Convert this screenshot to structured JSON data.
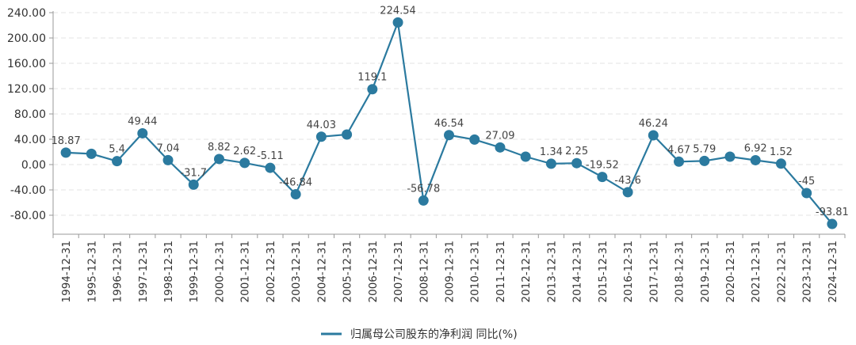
{
  "chart_data": {
    "type": "line",
    "title": "",
    "xlabel": "",
    "ylabel": "",
    "ylim": [
      -100,
      240
    ],
    "yticks": [
      -80,
      -40,
      0,
      40,
      80,
      120,
      160,
      200,
      240
    ],
    "ytick_labels": [
      "-80.00",
      "-40.00",
      "0.00",
      "40.00",
      "80.00",
      "120.00",
      "160.00",
      "200.00",
      "240.00"
    ],
    "grid": true,
    "legend_position": "bottom-center",
    "categories": [
      "1994-12-31",
      "1995-12-31",
      "1996-12-31",
      "1997-12-31",
      "1998-12-31",
      "1999-12-31",
      "2000-12-31",
      "2001-12-31",
      "2002-12-31",
      "2003-12-31",
      "2004-12-31",
      "2005-12-31",
      "2006-12-31",
      "2007-12-31",
      "2008-12-31",
      "2009-12-31",
      "2010-12-31",
      "2011-12-31",
      "2012-12-31",
      "2013-12-31",
      "2014-12-31",
      "2015-12-31",
      "2016-12-31",
      "2017-12-31",
      "2018-12-31",
      "2019-12-31",
      "2020-12-31",
      "2021-12-31",
      "2022-12-31",
      "2023-12-31",
      "2024-12-31"
    ],
    "series": [
      {
        "name": "归属母公司股东的净利润 同比(%)",
        "color": "#2b7a9f",
        "values": [
          18.87,
          17,
          5.4,
          49.44,
          7.04,
          -31.7,
          8.82,
          2.62,
          -5.11,
          -46.84,
          44.03,
          47.5,
          119.1,
          224.54,
          -56.78,
          46.54,
          39.5,
          27.09,
          12.5,
          1.34,
          2.25,
          -19.52,
          -43.6,
          46.24,
          4.67,
          5.79,
          12.5,
          6.92,
          1.52,
          -45,
          -93.81
        ],
        "labels": [
          "18.87",
          "",
          "5.4",
          "49.44",
          "7.04",
          "-31.7",
          "8.82",
          "2.62",
          "-5.11",
          "-46.84",
          "44.03",
          "",
          "119.1",
          "224.54",
          "-56.78",
          "46.54",
          "",
          "27.09",
          "",
          "1.34",
          "2.25",
          "-19.52",
          "-43.6",
          "46.24",
          "4.67",
          "5.79",
          "",
          "6.92",
          "1.52",
          "-45",
          "-93.81"
        ]
      }
    ]
  }
}
